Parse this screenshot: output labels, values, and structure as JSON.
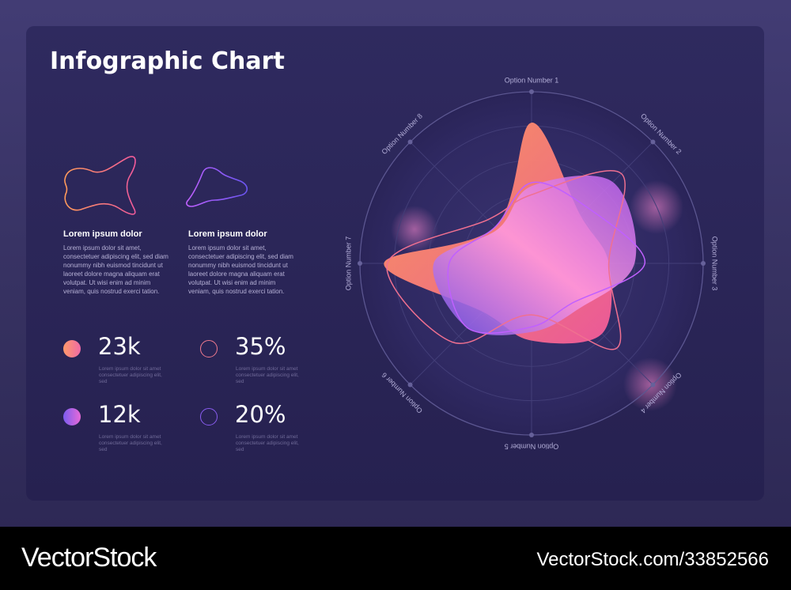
{
  "title": "Infographic Chart",
  "legend_blocks": [
    {
      "heading": "Lorem ipsum dolor",
      "text": "Lorem ipsum dolor sit amet, consectetuer adipiscing elit, sed diam nonummy nibh euismod tincidunt ut laoreet dolore magna aliquam erat volutpat. Ut wisi enim ad minim veniam, quis nostrud exerci tation."
    },
    {
      "heading": "Lorem ipsum dolor",
      "text": "Lorem ipsum dolor sit amet, consectetuer adipiscing elit, sed diam nonummy nibh euismod tincidunt ut laoreet dolore magna aliquam erat volutpat. Ut wisi enim ad minim veniam, quis nostrud exerci tation."
    }
  ],
  "stats": [
    {
      "value": "23k",
      "caption": "Lorem ipsum dolor sit amet consectetuer adipiscing elit, sed",
      "style": "filled",
      "color_from": "#ff9a6a",
      "color_to": "#f06aa6"
    },
    {
      "value": "35%",
      "caption": "Lorem ipsum dolor sit amet consectetuer adipiscing elit, sed",
      "style": "outline",
      "color": "#f07a8e"
    },
    {
      "value": "12k",
      "caption": "Lorem ipsum dolor sit amet consectetuer adipiscing elit, sed",
      "style": "filled",
      "color_from": "#7b5cf0",
      "color_to": "#e86ad8"
    },
    {
      "value": "20%",
      "caption": "Lorem ipsum dolor sit amet consectetuer adipiscing elit, sed",
      "style": "outline",
      "color": "#8a5cf0"
    }
  ],
  "chart_data": {
    "type": "radar",
    "title": "",
    "axes": [
      "Option Number 1",
      "Option Number 2",
      "Option Number 3",
      "Option Number 4",
      "Option Number 5",
      "Option Number 6",
      "Option Number 7",
      "Option Number 8"
    ],
    "range": [
      0,
      100
    ],
    "grid": true,
    "rings": 5,
    "series": [
      {
        "style": "filled",
        "color_from": "#ff9a5a",
        "color_to": "#f05a9a",
        "values": [
          82,
          40,
          45,
          58,
          45,
          40,
          86,
          30
        ]
      },
      {
        "style": "filled",
        "color_from": "#7a55f0",
        "color_to": "#ff9ae2",
        "values": [
          45,
          67,
          60,
          38,
          40,
          53,
          57,
          28
        ]
      },
      {
        "style": "outline",
        "color": "#f07090",
        "values": [
          40,
          74,
          45,
          70,
          30,
          65,
          84,
          36
        ]
      },
      {
        "style": "outline",
        "color": "#c060ff",
        "values": [
          47,
          46,
          66,
          33,
          37,
          53,
          48,
          30
        ]
      }
    ]
  },
  "footer": {
    "brand": "VectorStock",
    "ref": "VectorStock.com/33852566"
  }
}
